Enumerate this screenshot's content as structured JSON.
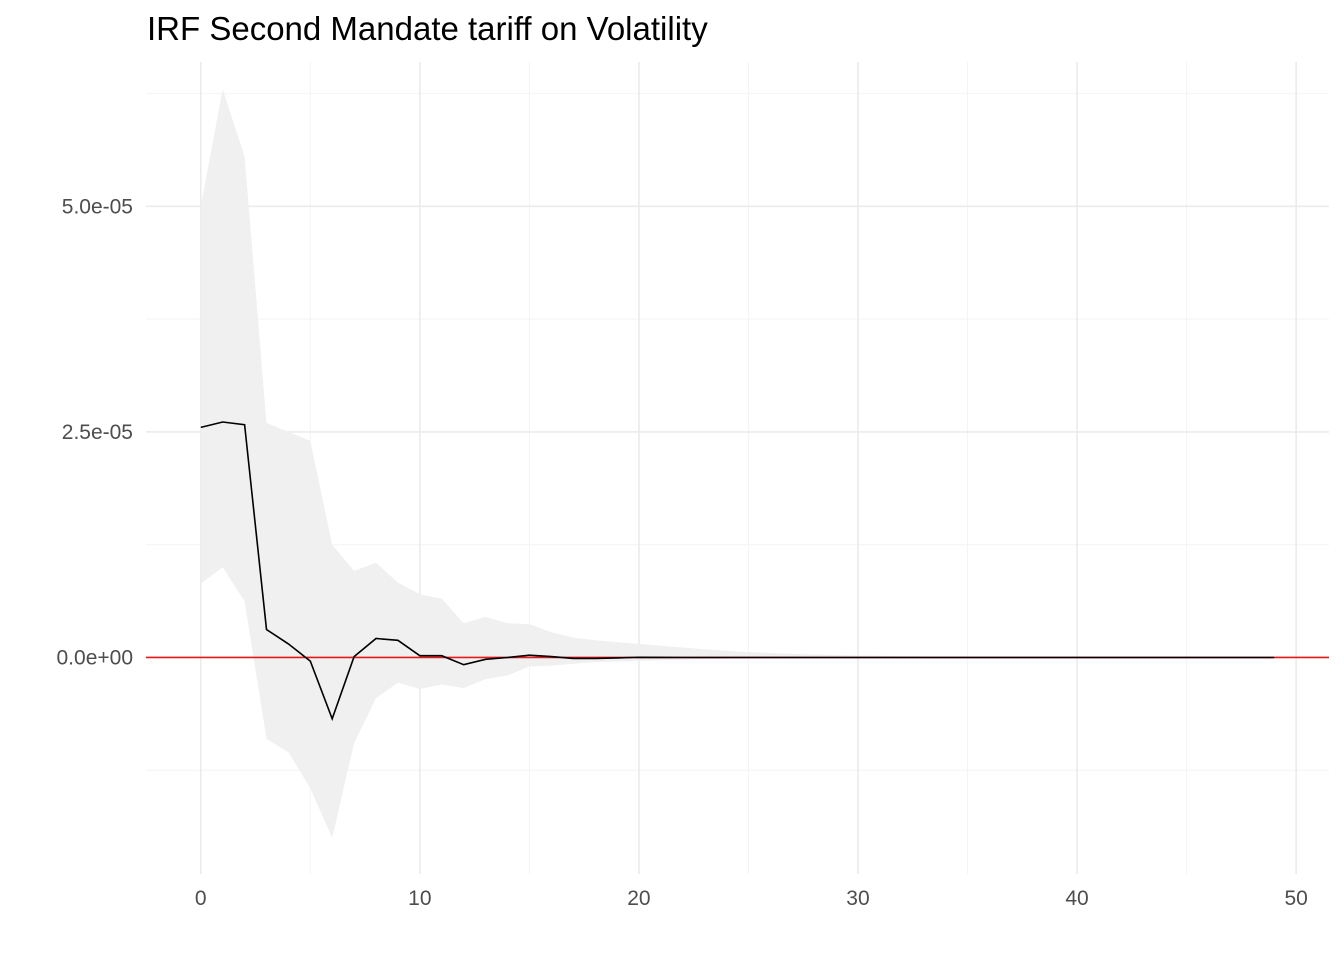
{
  "chart_data": {
    "type": "line",
    "title": "IRF Second Mandate tariff on Volatility",
    "xlabel": "",
    "ylabel": "",
    "xlim": [
      -2.5,
      51.5
    ],
    "ylim": [
      -2.4e-05,
      6.6e-05
    ],
    "x_ticks": [
      0,
      10,
      20,
      30,
      40,
      50
    ],
    "x_tick_labels": [
      "0",
      "10",
      "20",
      "30",
      "40",
      "50"
    ],
    "y_ticks": [
      0,
      2.5e-05,
      5e-05
    ],
    "y_tick_labels": [
      "0.0e+00",
      "2.5e-05",
      "5.0e-05"
    ],
    "grid": true,
    "reference_line": {
      "y": 0,
      "color": "#e41a1c"
    },
    "series": [
      {
        "x": [
          0,
          1,
          2,
          3,
          4,
          5,
          6,
          7,
          8,
          9,
          10,
          11,
          12,
          13,
          14,
          15,
          16,
          17,
          18,
          19,
          20,
          21,
          22,
          23,
          24,
          25,
          26,
          27,
          28,
          29,
          30,
          31,
          32,
          33,
          34,
          35,
          36,
          37,
          38,
          39,
          40,
          41,
          42,
          43,
          44,
          45,
          46,
          47,
          48,
          49
        ],
        "values": [
          2.55e-05,
          2.61e-05,
          2.58e-05,
          3.1e-06,
          1.5e-06,
          -4e-07,
          -6.8e-06,
          1e-07,
          2.1e-06,
          1.9e-06,
          2e-07,
          2e-07,
          -8e-07,
          -2e-07,
          0.0,
          2.5e-07,
          1e-07,
          -1e-07,
          -1e-07,
          -5e-08,
          2e-08,
          1e-08,
          0.0,
          0.0,
          0.0,
          0.0,
          0.0,
          0.0,
          0.0,
          0.0,
          0.0,
          0.0,
          0.0,
          0.0,
          0.0,
          0.0,
          0.0,
          0.0,
          0.0,
          0.0,
          0.0,
          0.0,
          0.0,
          0.0,
          0.0,
          0.0,
          0.0,
          0.0,
          0.0,
          0.0
        ],
        "lower": [
          8.2e-06,
          1e-05,
          6.2e-06,
          -9e-06,
          -1.05e-05,
          -1.45e-05,
          -2e-05,
          -9.5e-06,
          -4.5e-06,
          -2.8e-06,
          -3.5e-06,
          -3e-06,
          -3.4e-06,
          -2.4e-06,
          -2e-06,
          -1e-06,
          -9e-07,
          -7e-07,
          -5e-07,
          -4.5e-07,
          -3.5e-07,
          -3e-07,
          -2.5e-07,
          -2e-07,
          -1.5e-07,
          -1.2e-07,
          -1e-07,
          -8e-08,
          -6e-08,
          -5e-08,
          -4e-08,
          -3e-08,
          -2e-08,
          -2e-08,
          -1e-08,
          -1e-08,
          -1e-08,
          -1e-08,
          0.0,
          0.0,
          0.0,
          0.0,
          0.0,
          0.0,
          0.0,
          0.0,
          0.0,
          0.0,
          0.0,
          0.0
        ],
        "upper": [
          5e-05,
          6.3e-05,
          5.55e-05,
          2.6e-05,
          2.5e-05,
          2.4e-05,
          1.25e-05,
          9.6e-06,
          1.05e-05,
          8.3e-06,
          7e-06,
          6.5e-06,
          3.8e-06,
          4.5e-06,
          3.8e-06,
          3.7e-06,
          2.8e-06,
          2.2e-06,
          1.9e-06,
          1.7e-06,
          1.5e-06,
          1.3e-06,
          1.1e-06,
          9e-07,
          7.5e-07,
          6e-07,
          5e-07,
          4e-07,
          3.3e-07,
          2.7e-07,
          2.2e-07,
          1.8e-07,
          1.4e-07,
          1.1e-07,
          9e-08,
          7e-08,
          6e-08,
          5e-08,
          4e-08,
          3e-08,
          2e-08,
          2e-08,
          1e-08,
          1e-08,
          1e-08,
          0.0,
          0.0,
          0.0,
          0.0,
          0.0
        ]
      }
    ],
    "colors": {
      "line": "#000000",
      "band": "#f0f0f0",
      "grid_major": "#ebebeb",
      "grid_minor": "#f4f4f4"
    }
  }
}
